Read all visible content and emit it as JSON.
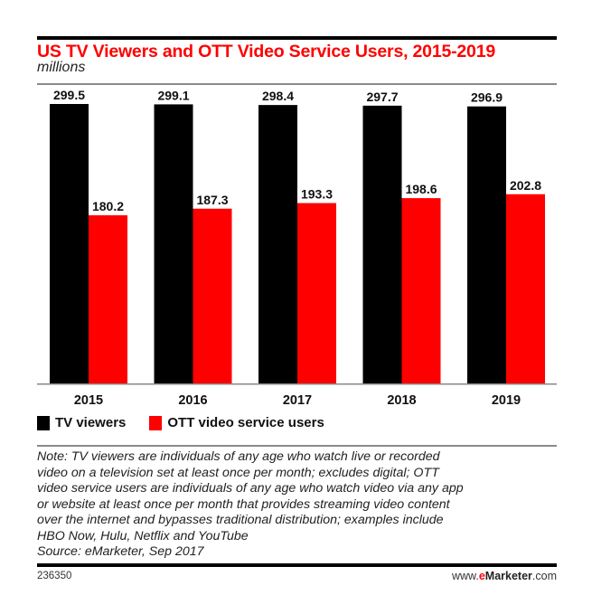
{
  "header": {
    "title": "US TV Viewers and OTT Video Service Users, 2015-2019",
    "subtitle": "millions"
  },
  "colors": {
    "title": "#ff0000",
    "tv_viewers": "#000000",
    "ott_users": "#ff0000"
  },
  "chart_data": {
    "type": "bar",
    "title": "US TV Viewers and OTT Video Service Users, 2015-2019",
    "subtitle": "millions",
    "xlabel": "",
    "ylabel": "",
    "ylim": [
      0,
      299.5
    ],
    "grid": false,
    "legend": "bottom-left",
    "categories": [
      "2015",
      "2016",
      "2017",
      "2018",
      "2019"
    ],
    "series": [
      {
        "name": "TV viewers",
        "color": "#000000",
        "values": [
          299.5,
          299.1,
          298.4,
          297.7,
          296.9
        ],
        "labels": [
          "299.5",
          "299.1",
          "298.4",
          "297.7",
          "296.9"
        ]
      },
      {
        "name": "OTT video service users",
        "color": "#ff0000",
        "values": [
          180.2,
          187.3,
          193.3,
          198.6,
          202.8
        ],
        "labels": [
          "180.2",
          "187.3",
          "193.3",
          "198.6",
          "202.8"
        ]
      }
    ]
  },
  "legend": {
    "items": [
      {
        "label": "TV viewers",
        "color": "#000000"
      },
      {
        "label": "OTT video service users",
        "color": "#ff0000"
      }
    ]
  },
  "note": {
    "lines": [
      "Note: TV viewers are individuals of any age who watch live or recorded",
      "video on a television set at least once per month; excludes digital; OTT",
      "video service users are individuals of any age who watch video via any app",
      "or website at least once per month that provides streaming video content",
      "over the internet and bypasses traditional distribution; examples include",
      "HBO Now, Hulu, Netflix and YouTube",
      "Source: eMarketer, Sep 2017"
    ]
  },
  "footer": {
    "chart_id": "236350",
    "brand_prefix": "www.",
    "brand_e": "e",
    "brand_name": "Marketer",
    "brand_suffix": ".com"
  }
}
